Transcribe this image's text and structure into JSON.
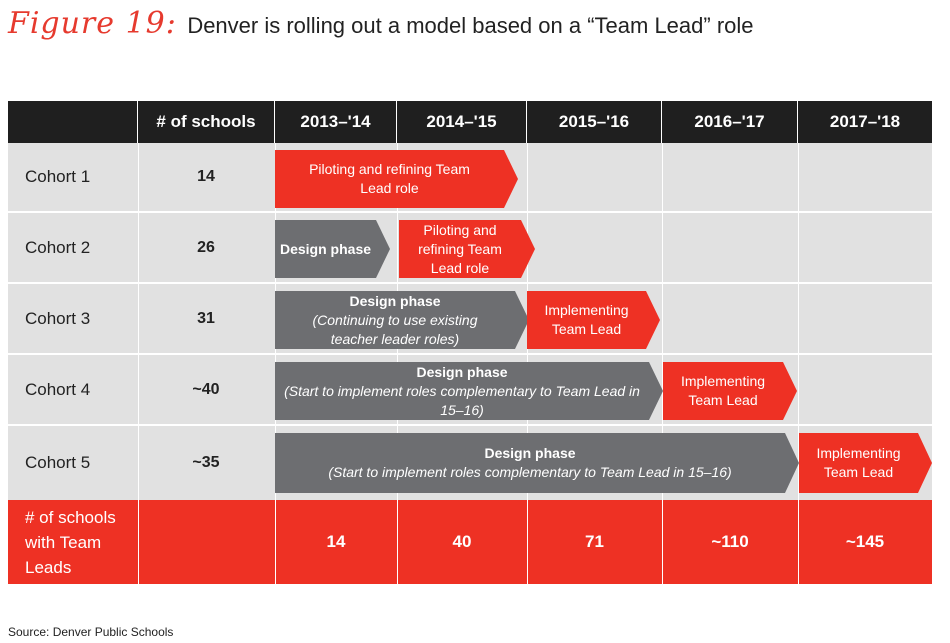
{
  "title": {
    "figure_label": "Figure 19:",
    "text": "Denver is rolling out a model based on a “Team Lead” role"
  },
  "header": {
    "schools_label": "# of schools",
    "years": [
      "2013–'14",
      "2014–'15",
      "2015–'16",
      "2016–'17",
      "2017–'18"
    ]
  },
  "cohorts": [
    {
      "label": "Cohort 1",
      "count": "14"
    },
    {
      "label": "Cohort 2",
      "count": "26"
    },
    {
      "label": "Cohort 3",
      "count": "31"
    },
    {
      "label": "Cohort 4",
      "count": "~40"
    },
    {
      "label": "Cohort 5",
      "count": "~35"
    }
  ],
  "phases": {
    "c1_pilot": "Piloting and refining Team Lead role",
    "c2_design": "Design phase",
    "c2_pilot_1": "Piloting and",
    "c2_pilot_2": "refining Team",
    "c2_pilot_3": "Lead role",
    "c3_design_title": "Design phase",
    "c3_design_sub": "(Continuing to use existing teacher leader roles)",
    "c3_impl": "Implementing Team Lead",
    "c4_design_title": "Design phase",
    "c4_design_sub": "(Start to implement roles complementary to Team Lead in 15–16)",
    "c4_impl": "Implementing Team Lead",
    "c5_design_title": "Design phase",
    "c5_design_sub": "(Start to implement roles complementary to Team Lead in 15–16)",
    "c5_impl": "Implementing Team Lead"
  },
  "footer": {
    "label": "# of schools with Team Leads",
    "values": [
      "14",
      "40",
      "71",
      "~110",
      "~145"
    ]
  },
  "source": "Source: Denver Public Schools",
  "colors": {
    "red": "#ee3124",
    "gray": "#6d6e71",
    "dark": "#1f1f1f",
    "row": "#e1e1e1"
  }
}
